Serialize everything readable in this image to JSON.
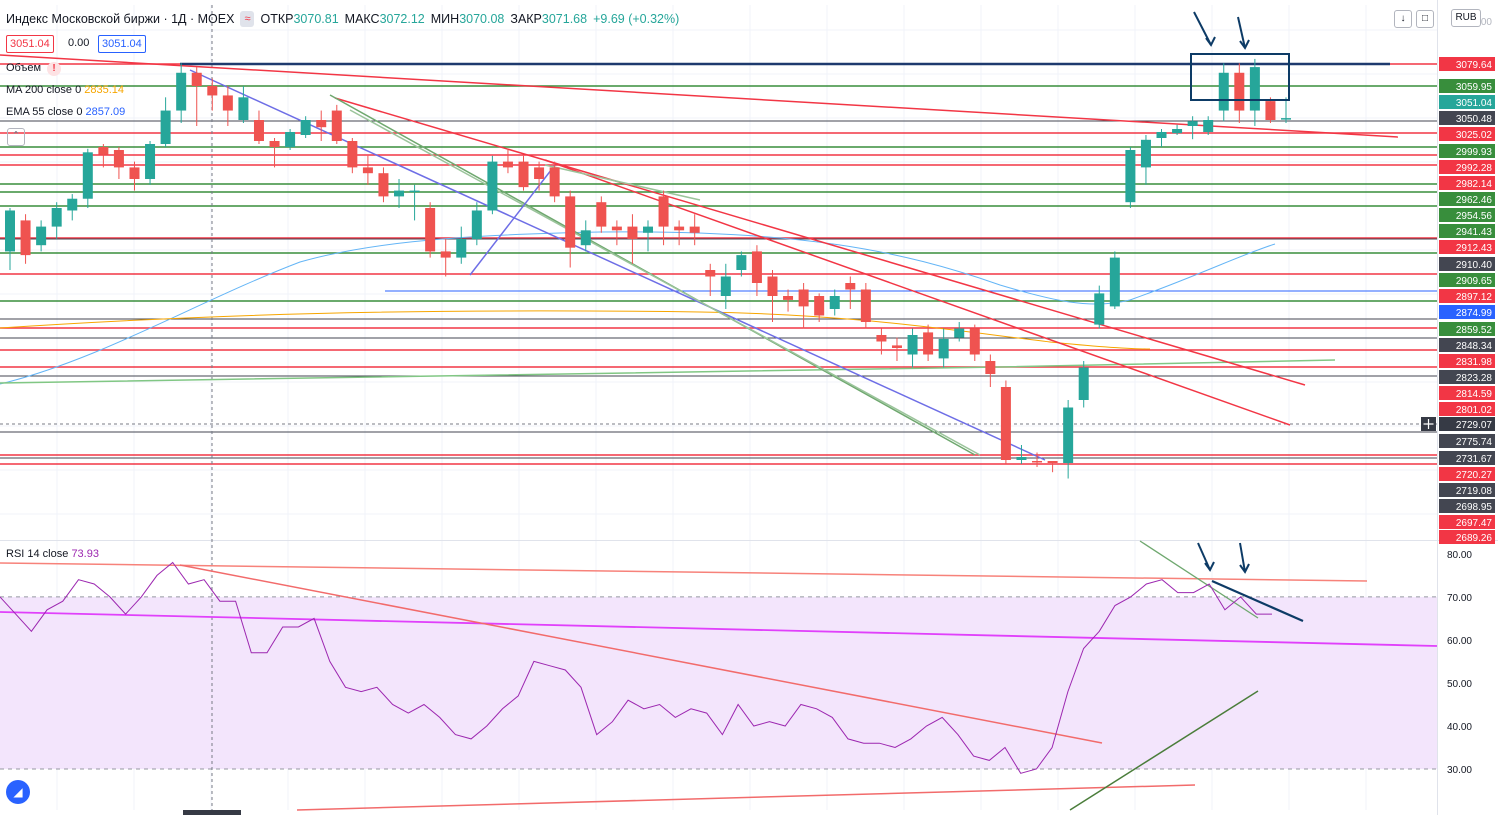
{
  "header": {
    "title": "Индекс Московской биржи · 1Д · MOEX",
    "open_label": "ОТКР",
    "open": "3070.81",
    "high_label": "МАКС",
    "high": "3072.12",
    "low_label": "МИН",
    "low": "3070.08",
    "close_label": "ЗАКР",
    "close": "3071.68",
    "change": "+9.69 (+0.32%)",
    "bid": "3051.04",
    "spread": "0.00",
    "ask": "3051.04",
    "currency": "RUB"
  },
  "indicators": {
    "volume_label": "Объем",
    "ma_label": "MA 200 close 0",
    "ma_value": "2835.14",
    "ema_label": "EMA 55 close 0",
    "ema_value": "2857.09",
    "rsi_label": "RSI 14 close",
    "rsi_value": "73.93"
  },
  "colors": {
    "up": "#26a69a",
    "down": "#ef5350",
    "ma200": "#f7a600",
    "ema55": "#2962ff",
    "rsi": "#9c27b0",
    "rsi_band": "#f3e5fc",
    "red_line": "#f23645",
    "green_line": "#388e3c",
    "gray_line": "#434651",
    "navy": "#0d3b66"
  },
  "icons": [
    "warning-icon",
    "wave-icon",
    "arrow-down-icon",
    "square-icon",
    "crosshair-plus-icon",
    "tradingview-logo-icon"
  ],
  "chart_data": [
    {
      "type": "candlestick",
      "title": "Индекс Московской биржи · 1Д · MOEX",
      "ylim": [
        2689.26,
        3095.0
      ],
      "ticks_hidden_top": "3100.00",
      "price_labels": [
        {
          "value": 3079.64,
          "kind": "red"
        },
        {
          "value": 3059.95,
          "kind": "green"
        },
        {
          "value": 3051.04,
          "kind": "teal"
        },
        {
          "value": 3050.48,
          "kind": "dark"
        },
        {
          "value": 3025.02,
          "kind": "red"
        },
        {
          "value": 2999.93,
          "kind": "green"
        },
        {
          "value": 2992.28,
          "kind": "red"
        },
        {
          "value": 2982.14,
          "kind": "red"
        },
        {
          "value": 2962.46,
          "kind": "green"
        },
        {
          "value": 2954.56,
          "kind": "green"
        },
        {
          "value": 2941.43,
          "kind": "green"
        },
        {
          "value": 2912.43,
          "kind": "red"
        },
        {
          "value": 2910.4,
          "kind": "dark"
        },
        {
          "value": 2909.65,
          "kind": "green"
        },
        {
          "value": 2897.12,
          "kind": "red"
        },
        {
          "value": 2874.99,
          "kind": "blue"
        },
        {
          "value": 2859.52,
          "kind": "green"
        },
        {
          "value": 2848.34,
          "kind": "dark"
        },
        {
          "value": 2831.98,
          "kind": "red"
        },
        {
          "value": 2823.28,
          "kind": "dark"
        },
        {
          "value": 2814.59,
          "kind": "red"
        },
        {
          "value": 2801.02,
          "kind": "red"
        },
        {
          "value": 2729.07,
          "kind": "crosshair"
        },
        {
          "value": 2775.74,
          "kind": "dark"
        },
        {
          "value": 2731.67,
          "kind": "dark"
        },
        {
          "value": 2720.27,
          "kind": "red"
        },
        {
          "value": 2719.08,
          "kind": "dark"
        },
        {
          "value": 2698.95,
          "kind": "dark"
        },
        {
          "value": 2697.47,
          "kind": "red"
        },
        {
          "value": 2689.26,
          "kind": "red"
        }
      ],
      "candles": [
        [
          2915,
          2948,
          2950,
          2900
        ],
        [
          2940,
          2912,
          2945,
          2905
        ],
        [
          2920,
          2935,
          2940,
          2915
        ],
        [
          2935,
          2950,
          2955,
          2925
        ],
        [
          2948,
          2958,
          2962,
          2940
        ],
        [
          2958,
          2998,
          3002,
          2950
        ],
        [
          3005,
          2996,
          3010,
          2985
        ],
        [
          3000,
          2985,
          3005,
          2975
        ],
        [
          2985,
          2975,
          2990,
          2965
        ],
        [
          2975,
          3010,
          3015,
          2970
        ],
        [
          3010,
          3055,
          3062,
          3005
        ],
        [
          3055,
          3075,
          3080,
          3045
        ],
        [
          3075,
          3068,
          3078,
          3040
        ],
        [
          3068,
          3063,
          3072,
          3055
        ],
        [
          3063,
          3055,
          3068,
          3040
        ],
        [
          3050,
          3062,
          3068,
          3045
        ],
        [
          3050,
          3015,
          3055,
          3010
        ],
        [
          3015,
          3005,
          3020,
          2985
        ],
        [
          3005,
          3030,
          3035,
          3000
        ],
        [
          3025,
          3050,
          3052,
          3020
        ],
        [
          3050,
          3038,
          3055,
          3015
        ],
        [
          3055,
          3015,
          3058,
          3010
        ],
        [
          3015,
          2985,
          3020,
          2980
        ],
        [
          2985,
          2980,
          2995,
          2970
        ],
        [
          2980,
          2960,
          2985,
          2955
        ],
        [
          2960,
          2965,
          2975,
          2950
        ],
        [
          2965,
          2965,
          2970,
          2940
        ],
        [
          2950,
          2915,
          2955,
          2910
        ],
        [
          2915,
          2910,
          2925,
          2895
        ],
        [
          2910,
          2925,
          2935,
          2905
        ],
        [
          2925,
          2948,
          2955,
          2920
        ],
        [
          2948,
          2990,
          2995,
          2945
        ],
        [
          2990,
          2985,
          3000,
          2980
        ],
        [
          2990,
          2968,
          2995,
          2965
        ],
        [
          2985,
          2975,
          2990,
          2965
        ],
        [
          2985,
          2960,
          2990,
          2955
        ],
        [
          2960,
          2918,
          2965,
          2902
        ],
        [
          2920,
          2932,
          2940,
          2915
        ],
        [
          2955,
          2935,
          2960,
          2930
        ],
        [
          2935,
          2932,
          2940,
          2920
        ],
        [
          2935,
          2925,
          2945,
          2905
        ],
        [
          2930,
          2935,
          2940,
          2915
        ],
        [
          2960,
          2935,
          2965,
          2920
        ],
        [
          2935,
          2932,
          2940,
          2920
        ],
        [
          2935,
          2930,
          2945,
          2920
        ],
        [
          2900,
          2895,
          2905,
          2880
        ],
        [
          2880,
          2895,
          2905,
          2870
        ],
        [
          2900,
          2912,
          2915,
          2895
        ],
        [
          2915,
          2890,
          2920,
          2880
        ],
        [
          2895,
          2880,
          2900,
          2860
        ],
        [
          2880,
          2877,
          2885,
          2868
        ],
        [
          2885,
          2872,
          2890,
          2855
        ],
        [
          2880,
          2865,
          2882,
          2860
        ],
        [
          2870,
          2880,
          2885,
          2865
        ],
        [
          2890,
          2885,
          2895,
          2870
        ],
        [
          2885,
          2860,
          2890,
          2855
        ],
        [
          2850,
          2845,
          2855,
          2835
        ],
        [
          2842,
          2840,
          2848,
          2830
        ],
        [
          2835,
          2850,
          2855,
          2825
        ],
        [
          2852,
          2835,
          2858,
          2830
        ],
        [
          2832,
          2847,
          2855,
          2825
        ],
        [
          2848,
          2855,
          2860,
          2845
        ],
        [
          2855,
          2835,
          2858,
          2830
        ],
        [
          2830,
          2820,
          2835,
          2810
        ],
        [
          2810,
          2760,
          2815,
          2740
        ],
        [
          2760,
          2762,
          2770,
          2740
        ],
        [
          2755,
          2750,
          2765,
          2725
        ],
        [
          2755,
          2745,
          2750,
          2718
        ],
        [
          2745,
          2795,
          2800,
          2715
        ],
        [
          2800,
          2825,
          2830,
          2795
        ],
        [
          2858,
          2882,
          2888,
          2855
        ],
        [
          2872,
          2910,
          2915,
          2870
        ],
        [
          2955,
          3000,
          3005,
          2950
        ],
        [
          2985,
          3017,
          3025,
          2970
        ],
        [
          3020,
          3030,
          3035,
          3005
        ],
        [
          3028,
          3035,
          3042,
          3025
        ],
        [
          3040,
          3048,
          3052,
          3018
        ],
        [
          3030,
          3050,
          3052,
          3025
        ],
        [
          3055,
          3075,
          3080,
          3048
        ],
        [
          3075,
          3055,
          3080,
          3045
        ],
        [
          3055,
          3078,
          3082,
          3040
        ],
        [
          3060,
          3050,
          3062,
          3045
        ],
        [
          3051,
          3051,
          3062,
          3045
        ]
      ],
      "trendlines": "decorative"
    },
    {
      "type": "line",
      "title": "RSI 14 close",
      "ylabel": "",
      "yticks": [
        "80.00",
        "70.00",
        "60.00",
        "50.00",
        "40.00",
        "30.00"
      ],
      "ylim": [
        20,
        83
      ],
      "band": [
        30,
        70
      ],
      "series": [
        {
          "name": "RSI 14 close",
          "values": [
            70,
            66,
            62,
            67,
            69,
            74,
            73,
            70,
            66,
            70,
            75,
            78,
            73,
            74,
            69,
            69,
            57,
            57,
            63,
            63,
            65,
            55,
            49,
            48,
            49,
            45,
            43,
            45,
            42,
            38,
            37,
            40,
            44,
            47,
            55,
            54,
            53,
            49,
            38,
            41,
            46,
            44,
            45,
            42,
            44,
            43,
            38,
            45,
            40,
            41,
            40,
            45,
            44,
            42,
            37,
            36,
            36,
            35,
            37,
            40,
            42,
            38,
            33,
            32,
            35,
            29,
            30,
            35,
            48,
            58,
            62,
            68,
            70,
            73,
            74,
            71,
            71,
            73,
            67,
            70,
            66,
            66
          ]
        }
      ]
    }
  ]
}
